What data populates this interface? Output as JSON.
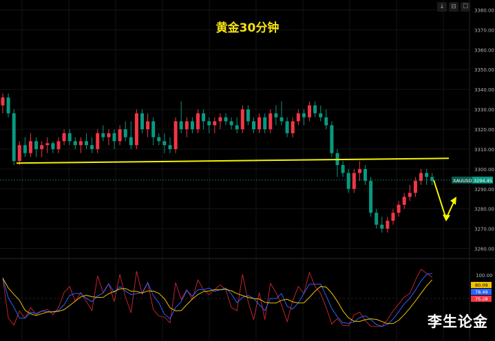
{
  "title": "黄金30分钟",
  "watermark": "李生论金",
  "toolbar": [
    "↓",
    "⊟",
    "☐"
  ],
  "price_axis": {
    "ticks": [
      "3380.00",
      "3370.00",
      "3360.00",
      "3350.00",
      "3340.00",
      "3330.00",
      "3320.00",
      "3310.00",
      "3300.00",
      "3290.00",
      "3280.00",
      "3270.00",
      "3260.00"
    ],
    "symbol": "XAUUSD",
    "last_price": "3294.45"
  },
  "oscillator_axis": {
    "tick": "100.00",
    "values": [
      {
        "label": "80.09",
        "color": "#f2c200"
      },
      {
        "label": "78.49",
        "color": "#2962ff"
      },
      {
        "label": "75.28",
        "color": "#f23645"
      }
    ]
  },
  "colors": {
    "up": "#f23645",
    "down": "#089981",
    "support_line": "#f5f500",
    "arrow": "#f5f500"
  },
  "chart_data": {
    "type": "candlestick",
    "ylim": [
      3255,
      3385
    ],
    "support_level": 3304,
    "ohlc": [
      [
        3332,
        3338,
        3328,
        3336
      ],
      [
        3336,
        3338,
        3326,
        3328
      ],
      [
        3328,
        3330,
        3302,
        3304
      ],
      [
        3304,
        3314,
        3302,
        3312
      ],
      [
        3312,
        3316,
        3306,
        3308
      ],
      [
        3308,
        3318,
        3306,
        3314
      ],
      [
        3314,
        3316,
        3306,
        3310
      ],
      [
        3310,
        3314,
        3306,
        3312
      ],
      [
        3312,
        3316,
        3308,
        3313
      ],
      [
        3313,
        3314,
        3308,
        3310
      ],
      [
        3310,
        3316,
        3308,
        3314
      ],
      [
        3314,
        3320,
        3312,
        3318
      ],
      [
        3318,
        3320,
        3312,
        3314
      ],
      [
        3314,
        3316,
        3310,
        3312
      ],
      [
        3312,
        3316,
        3308,
        3314
      ],
      [
        3314,
        3318,
        3310,
        3312
      ],
      [
        3312,
        3316,
        3308,
        3310
      ],
      [
        3310,
        3320,
        3308,
        3318
      ],
      [
        3318,
        3322,
        3314,
        3316
      ],
      [
        3316,
        3320,
        3312,
        3318
      ],
      [
        3318,
        3320,
        3310,
        3314
      ],
      [
        3314,
        3322,
        3312,
        3320
      ],
      [
        3320,
        3324,
        3314,
        3316
      ],
      [
        3316,
        3324,
        3310,
        3312
      ],
      [
        3312,
        3330,
        3310,
        3328
      ],
      [
        3328,
        3330,
        3318,
        3320
      ],
      [
        3320,
        3328,
        3316,
        3324
      ],
      [
        3324,
        3326,
        3312,
        3316
      ],
      [
        3316,
        3318,
        3312,
        3314
      ],
      [
        3314,
        3318,
        3308,
        3312
      ],
      [
        3312,
        3316,
        3308,
        3310
      ],
      [
        3310,
        3326,
        3308,
        3324
      ],
      [
        3324,
        3334,
        3318,
        3320
      ],
      [
        3320,
        3326,
        3316,
        3324
      ],
      [
        3324,
        3326,
        3318,
        3320
      ],
      [
        3320,
        3330,
        3318,
        3328
      ],
      [
        3328,
        3330,
        3320,
        3324
      ],
      [
        3324,
        3326,
        3318,
        3322
      ],
      [
        3322,
        3326,
        3318,
        3324
      ],
      [
        3324,
        3328,
        3320,
        3326
      ],
      [
        3326,
        3328,
        3322,
        3324
      ],
      [
        3324,
        3326,
        3320,
        3322
      ],
      [
        3322,
        3326,
        3318,
        3320
      ],
      [
        3320,
        3332,
        3318,
        3330
      ],
      [
        3330,
        3332,
        3322,
        3324
      ],
      [
        3324,
        3326,
        3318,
        3320
      ],
      [
        3320,
        3328,
        3318,
        3326
      ],
      [
        3326,
        3328,
        3318,
        3320
      ],
      [
        3320,
        3330,
        3318,
        3328
      ],
      [
        3328,
        3332,
        3322,
        3326
      ],
      [
        3326,
        3334,
        3322,
        3324
      ],
      [
        3324,
        3326,
        3316,
        3318
      ],
      [
        3318,
        3326,
        3316,
        3324
      ],
      [
        3324,
        3330,
        3322,
        3328
      ],
      [
        3328,
        3330,
        3322,
        3326
      ],
      [
        3326,
        3334,
        3324,
        3332
      ],
      [
        3332,
        3334,
        3326,
        3328
      ],
      [
        3328,
        3332,
        3324,
        3326
      ],
      [
        3326,
        3330,
        3320,
        3322
      ],
      [
        3322,
        3324,
        3306,
        3308
      ],
      [
        3308,
        3310,
        3296,
        3302
      ],
      [
        3302,
        3304,
        3296,
        3298
      ],
      [
        3298,
        3300,
        3288,
        3290
      ],
      [
        3290,
        3300,
        3288,
        3298
      ],
      [
        3298,
        3304,
        3294,
        3300
      ],
      [
        3300,
        3302,
        3292,
        3294
      ],
      [
        3294,
        3296,
        3276,
        3278
      ],
      [
        3278,
        3280,
        3270,
        3272
      ],
      [
        3272,
        3276,
        3268,
        3270
      ],
      [
        3270,
        3276,
        3268,
        3274
      ],
      [
        3274,
        3280,
        3272,
        3278
      ],
      [
        3278,
        3284,
        3276,
        3282
      ],
      [
        3282,
        3288,
        3280,
        3286
      ],
      [
        3286,
        3292,
        3284,
        3288
      ],
      [
        3288,
        3296,
        3286,
        3294
      ],
      [
        3294,
        3300,
        3292,
        3298
      ],
      [
        3298,
        3300,
        3292,
        3296
      ],
      [
        3296,
        3298,
        3292,
        3294
      ]
    ]
  }
}
